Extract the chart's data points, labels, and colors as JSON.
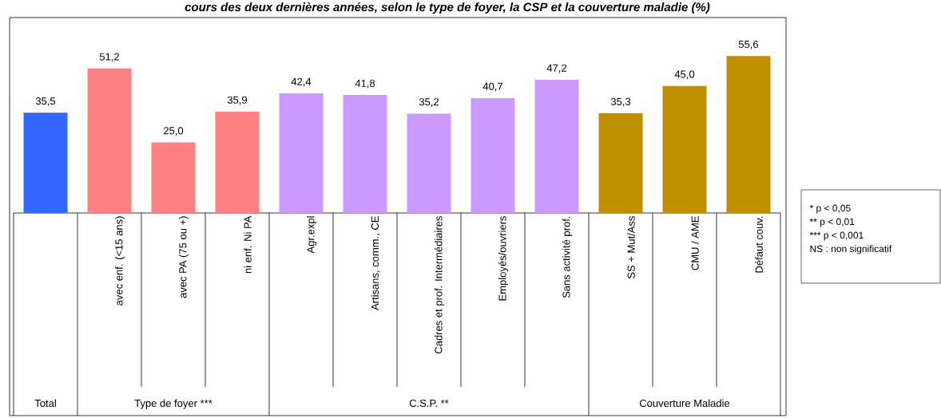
{
  "chart_data": {
    "type": "bar",
    "title": "cours des deux dernières années, selon le type de foyer, la CSP et la couverture maladie (%)",
    "categories": [
      null,
      "avec enf. (<15 ans)",
      "avec PA (75 ou +)",
      "ni enf. Ni PA",
      "Agr.expl",
      "Artisans, comm., CE",
      "Cadres et prof. Intermédiaires",
      "Employés/ouvriers",
      "Sans activité prof.",
      "SS + Mut/Ass",
      "CMU / AME",
      "Défaut couv."
    ],
    "values": [
      35.5,
      51.2,
      25.0,
      35.9,
      42.4,
      41.8,
      35.2,
      40.7,
      47.2,
      35.3,
      45.0,
      55.6
    ],
    "value_labels": [
      "35,5",
      "51,2",
      "25,0",
      "35,9",
      "42,4",
      "41,8",
      "35,2",
      "40,7",
      "47,2",
      "35,3",
      "45,0",
      "55,6"
    ],
    "colors": [
      "#3366ff",
      "#ff8080",
      "#ff8080",
      "#ff8080",
      "#cc99ff",
      "#cc99ff",
      "#cc99ff",
      "#cc99ff",
      "#cc99ff",
      "#bf8f00",
      "#bf8f00",
      "#bf8f00"
    ],
    "annotations": [
      "Total",
      "Type de foyer ***",
      "C.S.P. **",
      "Couverture Maladie",
      "* p < 0,05",
      "** p < 0,01",
      "*** p < 0,001",
      "NS : non significatif"
    ]
  }
}
